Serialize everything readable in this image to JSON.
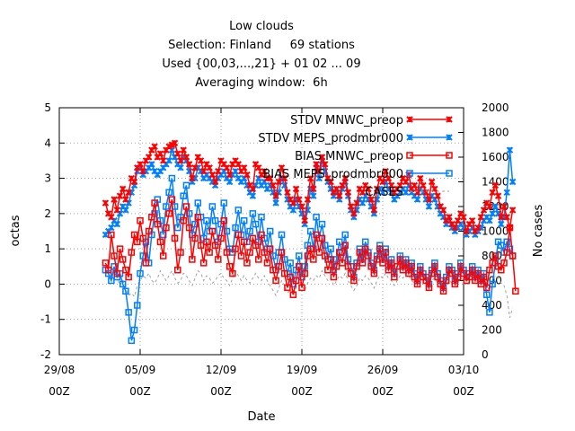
{
  "chart_data": {
    "type": "line",
    "title_lines": [
      "Low clouds",
      "Selection: Finland     69 stations",
      "Used {00,03,...,21} + 01 02 ... 09",
      "Averaging window:  6h"
    ],
    "xlabel": "Date",
    "ylabel": "octas",
    "y2label": "No cases",
    "xlim": [
      "2008-08-29 00",
      "2008-10-03 00"
    ],
    "ylim": [
      -2,
      5
    ],
    "y2lim": [
      0,
      2000
    ],
    "x_tick_labels": [
      {
        "date": "29/08",
        "hour": "00Z"
      },
      {
        "date": "05/09",
        "hour": "00Z"
      },
      {
        "date": "12/09",
        "hour": "00Z"
      },
      {
        "date": "19/09",
        "hour": "00Z"
      },
      {
        "date": "26/09",
        "hour": "00Z"
      },
      {
        "date": "03/10",
        "hour": "00Z"
      }
    ],
    "y_tick_labels": [
      "-2",
      "-1",
      "0",
      "1",
      "2",
      "3",
      "4",
      "5"
    ],
    "y2_tick_labels": [
      "0",
      "200",
      "400",
      "600",
      "800",
      "1000",
      "1200",
      "1400",
      "1600",
      "1800",
      "2000"
    ],
    "grid": true,
    "legend_position": "top-right",
    "x_start": "2008-09-02 00",
    "x_step_hours": 6,
    "series": [
      {
        "name": "STDV MNWC_preop",
        "color": "#ff0000",
        "marker": "x",
        "axis": "left",
        "values": [
          2.3,
          2.0,
          1.9,
          2.4,
          2.1,
          2.5,
          2.7,
          2.4,
          2.6,
          3.0,
          2.9,
          3.3,
          3.4,
          3.2,
          3.5,
          3.6,
          3.8,
          3.9,
          3.6,
          3.7,
          3.5,
          3.8,
          3.9,
          3.95,
          4.0,
          3.7,
          3.5,
          3.8,
          3.6,
          3.4,
          3.0,
          3.3,
          3.6,
          3.5,
          3.2,
          3.4,
          3.3,
          3.1,
          2.9,
          3.2,
          3.5,
          3.4,
          3.3,
          3.1,
          3.4,
          3.5,
          3.4,
          3.2,
          3.3,
          3.1,
          2.8,
          2.7,
          3.4,
          3.3,
          3.1,
          3.2,
          3.0,
          3.0,
          2.8,
          2.5,
          2.9,
          3.3,
          3.0,
          2.6,
          2.4,
          2.3,
          2.7,
          2.4,
          2.2,
          1.8,
          2.4,
          3.0,
          2.7,
          3.4,
          3.2,
          3.6,
          3.4,
          3.0,
          2.9,
          2.6,
          2.7,
          2.5,
          2.8,
          3.0,
          2.6,
          2.2,
          2.0,
          2.3,
          2.7,
          2.6,
          2.8,
          2.7,
          2.4,
          2.1,
          2.7,
          3.0,
          2.9,
          3.2,
          3.0,
          2.8,
          2.6,
          2.7,
          2.8,
          3.0,
          2.9,
          3.1,
          2.7,
          2.8,
          2.6,
          3.0,
          2.8,
          2.6,
          2.4,
          2.9,
          2.7,
          2.5,
          2.2,
          2.1,
          1.8,
          1.9,
          1.7,
          1.6,
          1.8,
          2.0,
          1.9,
          1.5,
          1.7,
          1.8,
          1.5,
          1.6,
          1.9,
          2.1,
          2.3,
          2.2,
          2.6,
          2.8,
          2.5,
          1.9,
          2.2,
          1.9,
          1.6,
          2.1
        ]
      },
      {
        "name": "STDV MEPS_prodmbr000",
        "color": "#0080ff",
        "marker": "x",
        "axis": "left",
        "values": [
          1.4,
          1.5,
          1.6,
          1.8,
          1.7,
          2.0,
          2.2,
          2.1,
          2.3,
          2.6,
          2.8,
          3.2,
          3.3,
          3.1,
          3.2,
          3.3,
          3.4,
          3.2,
          3.1,
          3.2,
          3.3,
          3.4,
          3.5,
          3.8,
          3.6,
          3.4,
          3.3,
          3.6,
          3.5,
          3.2,
          2.9,
          3.0,
          3.3,
          3.2,
          3.0,
          3.1,
          3.0,
          2.9,
          2.8,
          3.0,
          3.1,
          3.2,
          3.0,
          2.9,
          3.1,
          3.2,
          3.0,
          2.9,
          3.0,
          2.8,
          2.6,
          2.5,
          2.8,
          3.0,
          2.8,
          2.9,
          2.7,
          2.8,
          2.6,
          2.3,
          2.6,
          3.0,
          2.8,
          2.4,
          2.2,
          2.1,
          2.4,
          2.2,
          2.0,
          1.7,
          2.1,
          2.7,
          2.5,
          3.3,
          3.0,
          3.5,
          3.2,
          2.9,
          2.7,
          2.5,
          2.6,
          2.4,
          2.7,
          2.9,
          2.5,
          2.1,
          1.9,
          2.1,
          2.4,
          2.3,
          2.5,
          2.4,
          2.2,
          2.0,
          2.4,
          2.7,
          2.6,
          2.9,
          2.7,
          2.6,
          2.4,
          2.5,
          2.6,
          2.7,
          2.6,
          2.8,
          2.6,
          2.5,
          2.4,
          2.7,
          2.6,
          2.4,
          2.2,
          2.5,
          2.4,
          2.2,
          2.0,
          1.9,
          1.7,
          1.8,
          1.6,
          1.5,
          1.6,
          1.7,
          1.6,
          1.4,
          1.5,
          1.6,
          1.4,
          1.5,
          1.6,
          1.8,
          1.9,
          1.8,
          2.0,
          2.2,
          2.0,
          1.7,
          1.9,
          2.6,
          3.8,
          2.9
        ]
      },
      {
        "name": "BIAS MNWC_preop",
        "color": "#ff0000",
        "marker": "square",
        "axis": "left",
        "values": [
          0.6,
          0.4,
          1.4,
          0.8,
          0.3,
          1.0,
          0.7,
          0.4,
          0.2,
          0.9,
          1.4,
          1.2,
          1.8,
          1.3,
          0.6,
          1.5,
          1.9,
          2.3,
          1.7,
          1.2,
          0.8,
          1.6,
          2.0,
          2.4,
          1.3,
          0.4,
          0.9,
          1.8,
          2.2,
          1.6,
          0.7,
          1.3,
          1.9,
          1.1,
          0.6,
          1.2,
          0.9,
          1.5,
          1.1,
          0.7,
          1.3,
          1.8,
          0.9,
          0.5,
          0.3,
          1.0,
          1.4,
          0.8,
          1.2,
          0.6,
          0.9,
          1.3,
          1.1,
          0.7,
          1.4,
          0.9,
          0.6,
          1.0,
          0.4,
          0.1,
          0.5,
          0.9,
          0.3,
          -0.1,
          0.2,
          -0.3,
          0.1,
          0.5,
          -0.1,
          0.3,
          0.8,
          1.0,
          0.7,
          1.4,
          0.9,
          1.3,
          0.8,
          0.4,
          0.7,
          0.2,
          0.5,
          0.9,
          0.6,
          1.1,
          0.5,
          0.3,
          0.1,
          0.5,
          0.9,
          0.6,
          1.0,
          0.8,
          0.5,
          0.3,
          0.7,
          1.0,
          0.6,
          0.9,
          0.4,
          0.6,
          0.2,
          0.5,
          0.7,
          0.4,
          0.6,
          0.3,
          0.5,
          0.2,
          0.0,
          0.4,
          0.2,
          0.1,
          -0.1,
          0.3,
          0.5,
          0.2,
          0.0,
          -0.2,
          0.1,
          0.4,
          0.3,
          0.0,
          0.2,
          0.5,
          0.3,
          0.1,
          0.2,
          0.4,
          0.1,
          0.3,
          0.0,
          0.2,
          -0.1,
          0.4,
          0.6,
          0.8,
          0.5,
          0.4,
          0.6,
          0.9,
          1.6,
          0.8,
          -0.2
        ]
      },
      {
        "name": "BIAS MEPS_prodmbr000",
        "color": "#0080ff",
        "marker": "square",
        "axis": "left",
        "values": [
          0.4,
          0.3,
          0.1,
          0.5,
          0.2,
          0.3,
          0.0,
          -0.2,
          -0.8,
          -1.6,
          -1.3,
          -0.6,
          0.3,
          0.8,
          1.2,
          0.6,
          1.4,
          2.0,
          2.4,
          1.8,
          1.4,
          2.2,
          2.6,
          3.0,
          2.2,
          1.6,
          1.9,
          2.5,
          2.8,
          2.0,
          1.4,
          1.7,
          2.3,
          1.9,
          1.3,
          1.8,
          1.5,
          2.2,
          1.8,
          1.2,
          1.7,
          2.3,
          1.5,
          1.0,
          0.9,
          1.6,
          2.1,
          1.4,
          1.8,
          1.2,
          1.5,
          2.0,
          1.7,
          1.2,
          1.9,
          1.3,
          1.0,
          1.5,
          0.8,
          0.4,
          0.9,
          1.4,
          0.7,
          0.3,
          0.6,
          0.0,
          0.4,
          0.8,
          0.2,
          0.5,
          1.1,
          1.5,
          1.0,
          1.9,
          1.3,
          1.7,
          1.1,
          0.7,
          1.0,
          0.4,
          0.7,
          1.2,
          0.9,
          1.4,
          0.7,
          0.5,
          0.2,
          0.6,
          1.0,
          0.7,
          1.2,
          0.9,
          0.6,
          0.4,
          0.8,
          1.1,
          0.7,
          1.0,
          0.5,
          0.7,
          0.3,
          0.5,
          0.8,
          0.5,
          0.7,
          0.4,
          0.6,
          0.3,
          0.1,
          0.5,
          0.3,
          0.2,
          0.0,
          0.4,
          0.6,
          0.3,
          0.1,
          -0.1,
          0.2,
          0.5,
          0.4,
          0.1,
          0.3,
          0.6,
          0.4,
          0.2,
          0.3,
          0.5,
          0.2,
          0.4,
          0.1,
          0.3,
          -0.3,
          -0.8,
          0.0,
          0.6,
          1.2,
          1.1,
          0.9,
          1.2,
          1.0,
          0.8
        ]
      },
      {
        "name": "CASES",
        "color": "#a0a0a0",
        "dash": true,
        "axis": "right",
        "values": [
          720,
          680,
          640,
          700,
          620,
          560,
          600,
          540,
          480,
          500,
          470,
          560,
          600,
          640,
          620,
          660,
          600,
          580,
          620,
          680,
          640,
          600,
          640,
          680,
          620,
          580,
          600,
          660,
          640,
          600,
          560,
          620,
          680,
          660,
          600,
          640,
          620,
          580,
          600,
          640,
          660,
          620,
          600,
          560,
          620,
          680,
          640,
          600,
          640,
          600,
          580,
          620,
          660,
          620,
          600,
          640,
          600,
          560,
          520,
          480,
          540,
          600,
          560,
          500,
          520,
          480,
          540,
          600,
          560,
          520,
          580,
          620,
          600,
          640,
          620,
          680,
          640,
          600,
          620,
          560,
          600,
          640,
          620,
          660,
          600,
          560,
          520,
          560,
          620,
          600,
          640,
          620,
          580,
          540,
          600,
          640,
          620,
          660,
          620,
          600,
          560,
          600,
          640,
          620,
          660,
          640,
          600,
          580,
          560,
          620,
          600,
          580,
          540,
          600,
          620,
          580,
          560,
          540,
          560,
          600,
          580,
          560,
          580,
          620,
          600,
          560,
          580,
          620,
          600,
          580,
          600,
          640,
          560,
          520,
          600,
          640,
          620,
          580,
          560,
          480,
          300,
          380
        ]
      }
    ]
  }
}
